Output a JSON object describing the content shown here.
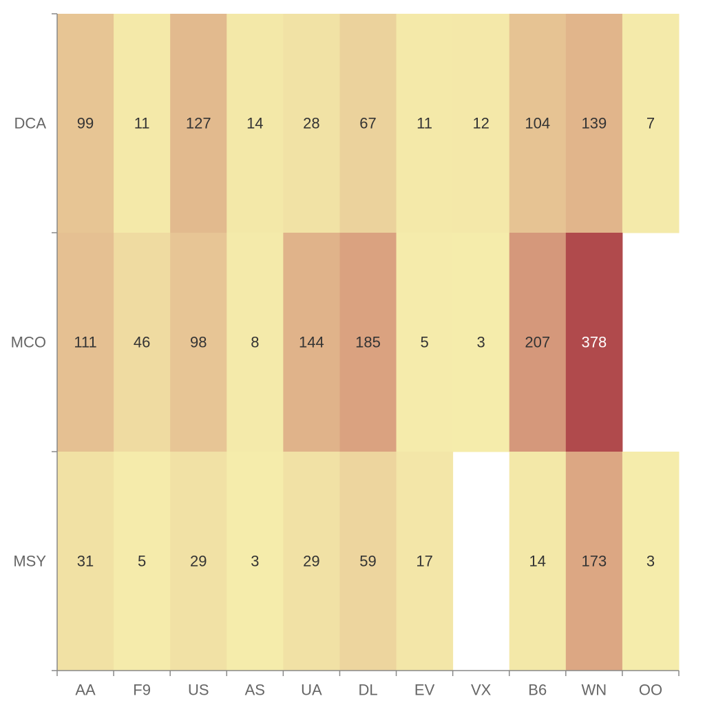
{
  "chart_data": {
    "type": "heatmap",
    "title": "",
    "xlabel": "",
    "ylabel": "",
    "x_categories": [
      "AA",
      "F9",
      "US",
      "AS",
      "UA",
      "DL",
      "EV",
      "VX",
      "B6",
      "WN",
      "OO"
    ],
    "y_categories": [
      "DCA",
      "MCO",
      "MSY"
    ],
    "values": [
      [
        99,
        11,
        127,
        14,
        28,
        67,
        11,
        12,
        104,
        139,
        7
      ],
      [
        111,
        46,
        98,
        8,
        144,
        185,
        5,
        3,
        207,
        378,
        null
      ],
      [
        31,
        5,
        29,
        3,
        29,
        59,
        17,
        null,
        14,
        173,
        3
      ]
    ],
    "color_scale": {
      "min": 3,
      "max": 378,
      "low_color": "#f5ecab",
      "mid_color": "#d9a07f",
      "high_color": "#b04a4c"
    },
    "missing_color": "#ffffff",
    "label_color_dark": "#333333",
    "label_color_light": "#ffffff",
    "grid": false,
    "legend": "none"
  }
}
